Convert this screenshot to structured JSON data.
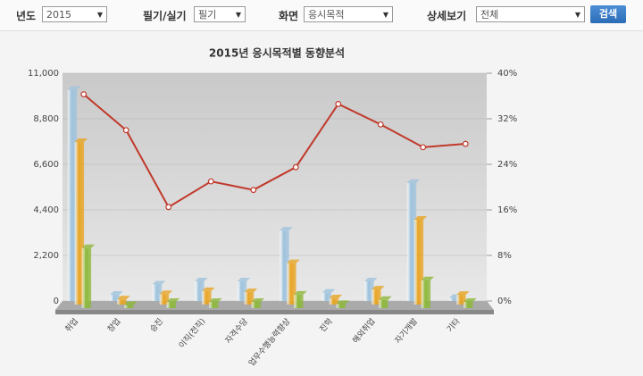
{
  "filters": [
    {
      "label": "년도",
      "value": "2015"
    },
    {
      "label": "필기/실기",
      "value": "필기"
    },
    {
      "label": "화면",
      "value": "응시목적"
    },
    {
      "label": "상세보기",
      "value": "전체"
    }
  ],
  "search_button": "검색",
  "chart_data": {
    "type": "bar",
    "title": "2015년 응시목적별 동향분석",
    "categories": [
      "취업",
      "창업",
      "승진",
      "이직(전직)",
      "자격수당",
      "업무수행능력향상",
      "진학",
      "해외취업",
      "자기개발",
      "기타"
    ],
    "series": [
      {
        "color": "#9fc3dd",
        "values": [
          10200,
          300,
          800,
          950,
          950,
          3400,
          400,
          950,
          5700,
          150
        ]
      },
      {
        "color": "#e8a523",
        "values": [
          7850,
          250,
          500,
          650,
          600,
          2000,
          300,
          730,
          4100,
          470
        ]
      },
      {
        "color": "#8db83a",
        "values": [
          2900,
          150,
          300,
          300,
          300,
          650,
          200,
          400,
          1350,
          300
        ]
      },
      {
        "type": "line",
        "axis": "y2",
        "color": "#c0392b",
        "values": [
          36.3,
          30,
          16.5,
          21,
          19.5,
          23.5,
          34.6,
          31,
          27,
          27.6
        ]
      }
    ],
    "ylim": [
      0,
      11000
    ],
    "yticks": [
      0,
      {
        "value": 2200,
        "label": "2,200"
      },
      {
        "value": 4400,
        "label": "4,400"
      },
      {
        "value": 6600,
        "label": "6,600"
      },
      {
        "value": 8800,
        "label": "8,800"
      },
      {
        "value": 11000,
        "label": "11,000"
      }
    ],
    "y2lim": [
      0,
      40
    ],
    "y2ticks": [
      {
        "value": 0,
        "label": "0%"
      },
      {
        "value": 8,
        "label": "8%"
      },
      {
        "value": 16,
        "label": "16%"
      },
      {
        "value": 24,
        "label": "24%"
      },
      {
        "value": 32,
        "label": "32%"
      },
      {
        "value": 40,
        "label": "40%"
      }
    ],
    "grid": true
  }
}
